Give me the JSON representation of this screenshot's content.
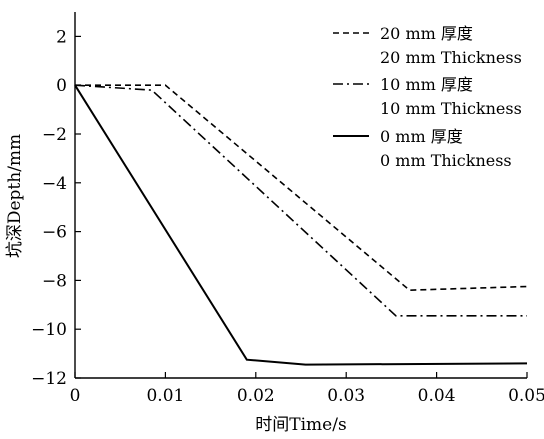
{
  "chart_data": {
    "type": "line",
    "xlabel": "时间Time/s",
    "ylabel": "坑深Depth/mm",
    "xlim": [
      0,
      0.05
    ],
    "ylim": [
      -12,
      3
    ],
    "x_ticks": [
      "0",
      "0.01",
      "0.02",
      "0.03",
      "0.04",
      "0.05"
    ],
    "y_ticks": [
      "2",
      "0",
      "−2",
      "−4",
      "−6",
      "−8",
      "−10",
      "−12"
    ],
    "grid": false,
    "legend_position": "top-right",
    "series": [
      {
        "name_lines": [
          "20 mm 厚度",
          "20 mm Thickness"
        ],
        "style": "dashed",
        "points": [
          [
            0,
            0
          ],
          [
            0.01,
            0.0
          ],
          [
            0.037,
            -8.4
          ],
          [
            0.05,
            -8.25
          ]
        ]
      },
      {
        "name_lines": [
          "10 mm 厚度",
          "10 mm Thickness"
        ],
        "style": "dashdot",
        "points": [
          [
            0,
            0
          ],
          [
            0.0085,
            -0.2
          ],
          [
            0.0355,
            -9.45
          ],
          [
            0.05,
            -9.45
          ]
        ]
      },
      {
        "name_lines": [
          "0 mm 厚度",
          "0 mm Thickness"
        ],
        "style": "solid",
        "points": [
          [
            0,
            0
          ],
          [
            0.019,
            -11.25
          ],
          [
            0.0255,
            -11.45
          ],
          [
            0.05,
            -11.4
          ]
        ]
      }
    ]
  }
}
